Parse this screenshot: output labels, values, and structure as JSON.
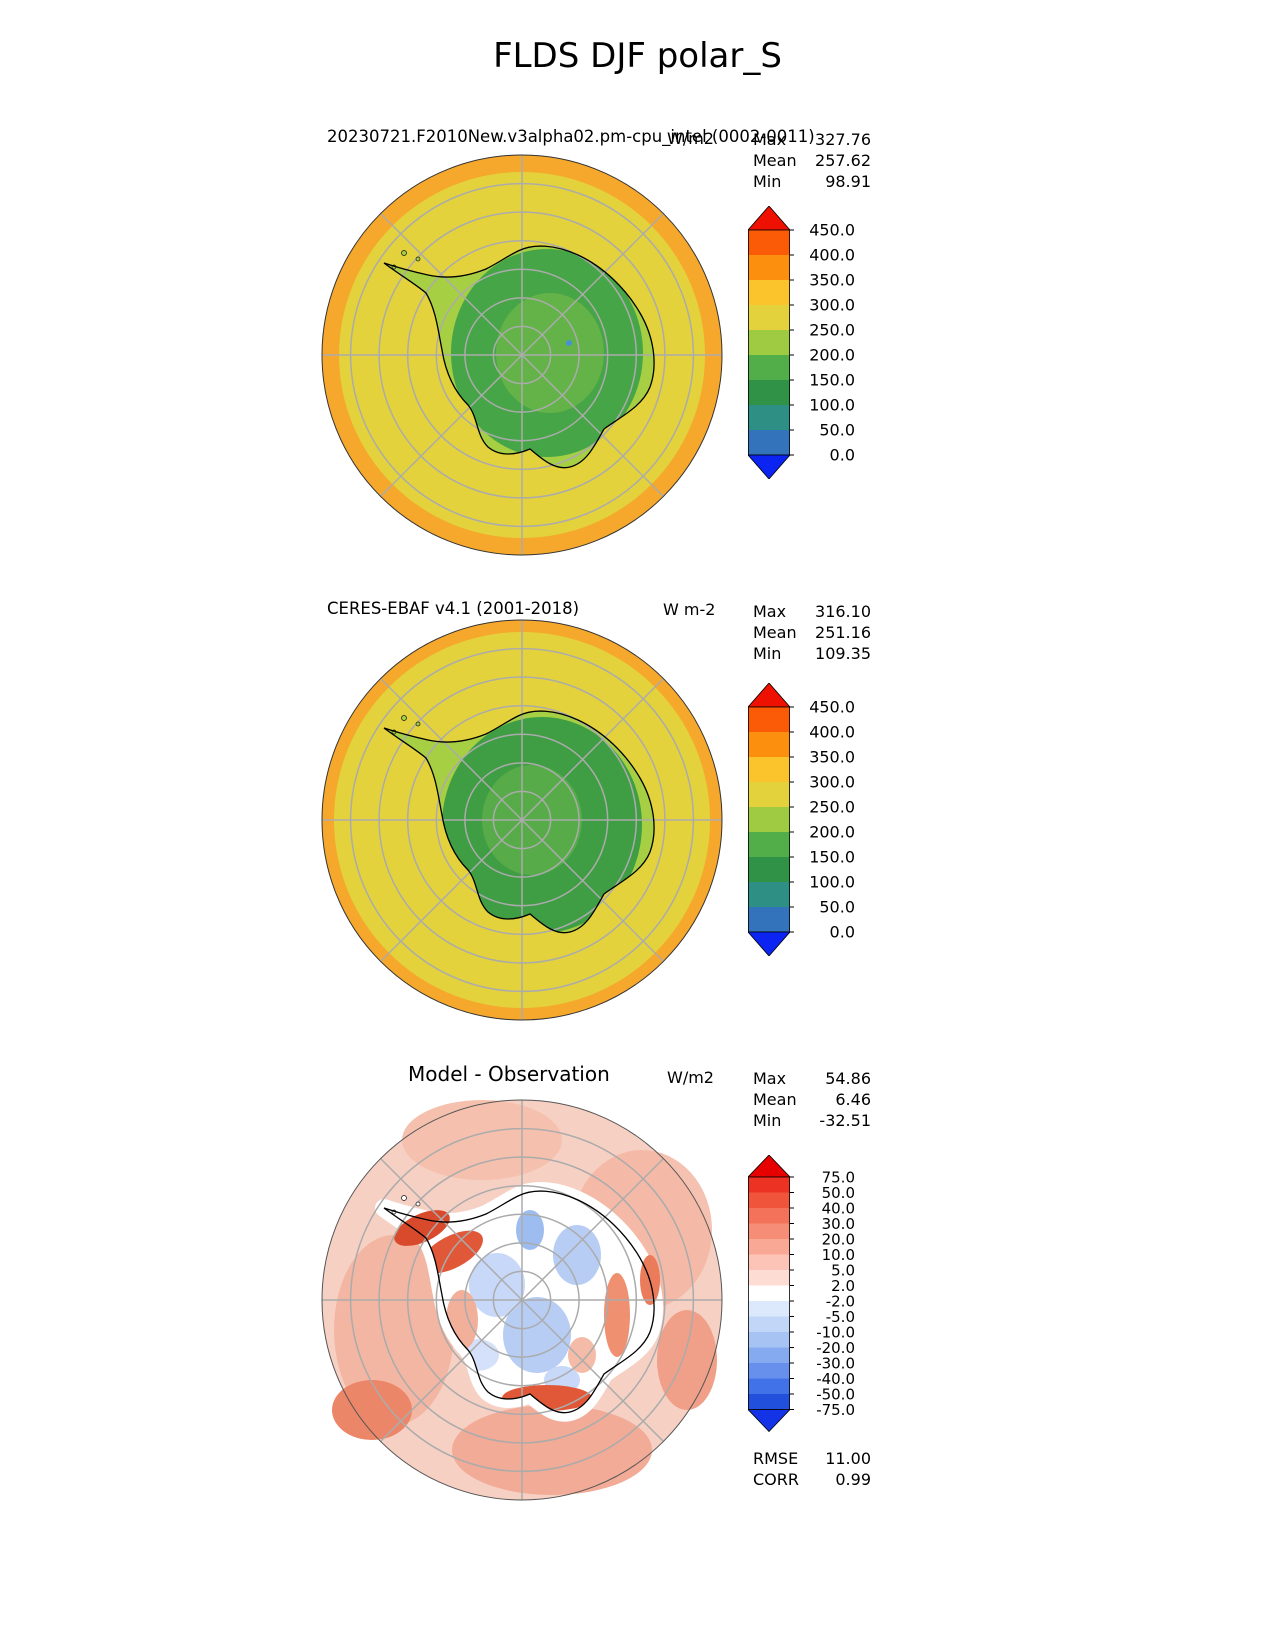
{
  "page_title": "FLDS DJF polar_S",
  "panels": [
    {
      "title": "20230721.F2010New.v3alpha02.pm-cpu_intel (0002-0011)",
      "units": "W/m2",
      "stats": {
        "max_label": "Max",
        "max": "327.76",
        "mean_label": "Mean",
        "mean": "257.62",
        "min_label": "Min",
        "min": "98.91"
      },
      "colorbar": {
        "ticks": [
          "450.0",
          "400.0",
          "350.0",
          "300.0",
          "250.0",
          "200.0",
          "150.0",
          "100.0",
          "50.0",
          "0.0"
        ],
        "segment_colors": [
          "#fb5a07",
          "#fd8f0e",
          "#fbc32c",
          "#e3d23c",
          "#9ecb42",
          "#52ae49",
          "#2f9247",
          "#2e8f85",
          "#3373bb"
        ],
        "arrow_top": "#ee1000",
        "arrow_bottom": "#0b24f2"
      }
    },
    {
      "title": "CERES-EBAF v4.1 (2001-2018)",
      "units": "W m-2",
      "stats": {
        "max_label": "Max",
        "max": "316.10",
        "mean_label": "Mean",
        "mean": "251.16",
        "min_label": "Min",
        "min": "109.35"
      },
      "colorbar": {
        "ticks": [
          "450.0",
          "400.0",
          "350.0",
          "300.0",
          "250.0",
          "200.0",
          "150.0",
          "100.0",
          "50.0",
          "0.0"
        ],
        "segment_colors": [
          "#fb5a07",
          "#fd8f0e",
          "#fbc32c",
          "#e3d23c",
          "#9ecb42",
          "#52ae49",
          "#2f9247",
          "#2e8f85",
          "#3373bb"
        ],
        "arrow_top": "#ee1000",
        "arrow_bottom": "#0b24f2"
      }
    },
    {
      "title": "Model - Observation",
      "units": "W/m2",
      "stats": {
        "max_label": "Max",
        "max": "54.86",
        "mean_label": "Mean",
        "mean": "6.46",
        "min_label": "Min",
        "min": "-32.51"
      },
      "extra": {
        "rmse_label": "RMSE",
        "rmse": "11.00",
        "corr_label": "CORR",
        "corr": "0.99"
      },
      "colorbar": {
        "ticks": [
          "75.0",
          "50.0",
          "40.0",
          "30.0",
          "20.0",
          "10.0",
          "5.0",
          "2.0",
          "-2.0",
          "-5.0",
          "-10.0",
          "-20.0",
          "-30.0",
          "-40.0",
          "-50.0",
          "-75.0"
        ],
        "segment_colors": [
          "#ec3323",
          "#f0553b",
          "#f4725a",
          "#f68d77",
          "#f9a896",
          "#fbc4b7",
          "#fddcd3",
          "#ffffff",
          "#dce8fb",
          "#c2d6f8",
          "#a6c3f4",
          "#86aaf0",
          "#6690ec",
          "#4272e8",
          "#2050dc"
        ],
        "arrow_top": "#e60000",
        "arrow_bottom": "#1432e6"
      }
    }
  ],
  "map_colors": {
    "ocean_yellow": "#e3d23c",
    "rim_orange": "#f5a82c",
    "continent_light_green": "#a7cf44",
    "continent_green": "#46a546",
    "diff_background_pink": "#f7d0c4",
    "diff_white_band": "#ffffff",
    "diff_blue_patch": "#b7cdf4",
    "diff_red_patch": "#d94a2c"
  },
  "chart_data": {
    "type": "heatmap",
    "subtype": "polar_stereographic_contour_maps",
    "projection": "south_polar_stereographic",
    "suptitle": "FLDS DJF polar_S",
    "variable": "FLDS",
    "season": "DJF",
    "region": "polar_S",
    "panels": [
      {
        "title": "20230721.F2010New.v3alpha02.pm-cpu_intel (0002-0011)",
        "units": "W/m2",
        "max": 327.76,
        "mean": 257.62,
        "min": 98.91,
        "contour_levels": [
          0,
          50,
          100,
          150,
          200,
          250,
          300,
          350,
          400,
          450
        ],
        "colorbar_extend": "both"
      },
      {
        "title": "CERES-EBAF v4.1 (2001-2018)",
        "units": "W m-2",
        "max": 316.1,
        "mean": 251.16,
        "min": 109.35,
        "contour_levels": [
          0,
          50,
          100,
          150,
          200,
          250,
          300,
          350,
          400,
          450
        ],
        "colorbar_extend": "both"
      },
      {
        "title": "Model - Observation",
        "units": "W/m2",
        "max": 54.86,
        "mean": 6.46,
        "min": -32.51,
        "contour_levels": [
          -75,
          -50,
          -40,
          -30,
          -20,
          -10,
          -5,
          -2,
          2,
          5,
          10,
          20,
          30,
          40,
          50,
          75
        ],
        "rmse": 11.0,
        "corr": 0.99,
        "colorbar_extend": "both"
      }
    ]
  }
}
